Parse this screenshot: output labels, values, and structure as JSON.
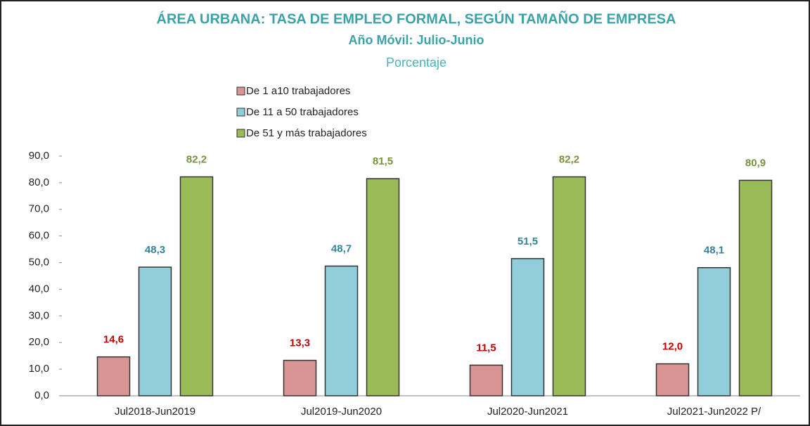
{
  "chart_data": {
    "type": "bar",
    "title": "ÁREA URBANA: TASA DE EMPLEO FORMAL, SEGÚN TAMAÑO DE EMPRESA",
    "subtitle": "Año Móvil: Julio-Junio",
    "y_axis_label": "Porcentaje",
    "categories": [
      "Jul2018-Jun2019",
      "Jul2019-Jun2020",
      "Jul2020-Jun2021",
      "Jul2021-Jun2022 P/"
    ],
    "series": [
      {
        "name": "De 1 a10 trabajadores",
        "color": "#d99594",
        "label_color": "#c00000",
        "values": [
          14.6,
          13.3,
          11.5,
          12.0
        ],
        "value_labels": [
          "14,6",
          "13,3",
          "11,5",
          "12,0"
        ]
      },
      {
        "name": "De 11 a 50 trabajadores",
        "color": "#92cddc",
        "label_color": "#31859c",
        "values": [
          48.3,
          48.7,
          51.5,
          48.1
        ],
        "value_labels": [
          "48,3",
          "48,7",
          "51,5",
          "48,1"
        ]
      },
      {
        "name": "De 51 y más trabajadores",
        "color": "#9bbb59",
        "label_color": "#76923c",
        "values": [
          82.2,
          81.5,
          82.2,
          80.9
        ],
        "value_labels": [
          "82,2",
          "81,5",
          "82,2",
          "80,9"
        ]
      }
    ],
    "ylim": [
      0,
      90
    ],
    "yticks": [
      {
        "value": 0,
        "label": "0,0"
      },
      {
        "value": 10,
        "label": "10,0"
      },
      {
        "value": 20,
        "label": "20,0"
      },
      {
        "value": 30,
        "label": "30,0"
      },
      {
        "value": 40,
        "label": "40,0"
      },
      {
        "value": 50,
        "label": "50,0"
      },
      {
        "value": 60,
        "label": "60,0"
      },
      {
        "value": 70,
        "label": "70,0"
      },
      {
        "value": 80,
        "label": "80,0"
      },
      {
        "value": 90,
        "label": "90,0"
      }
    ],
    "grid": false,
    "legend": "top-left"
  }
}
